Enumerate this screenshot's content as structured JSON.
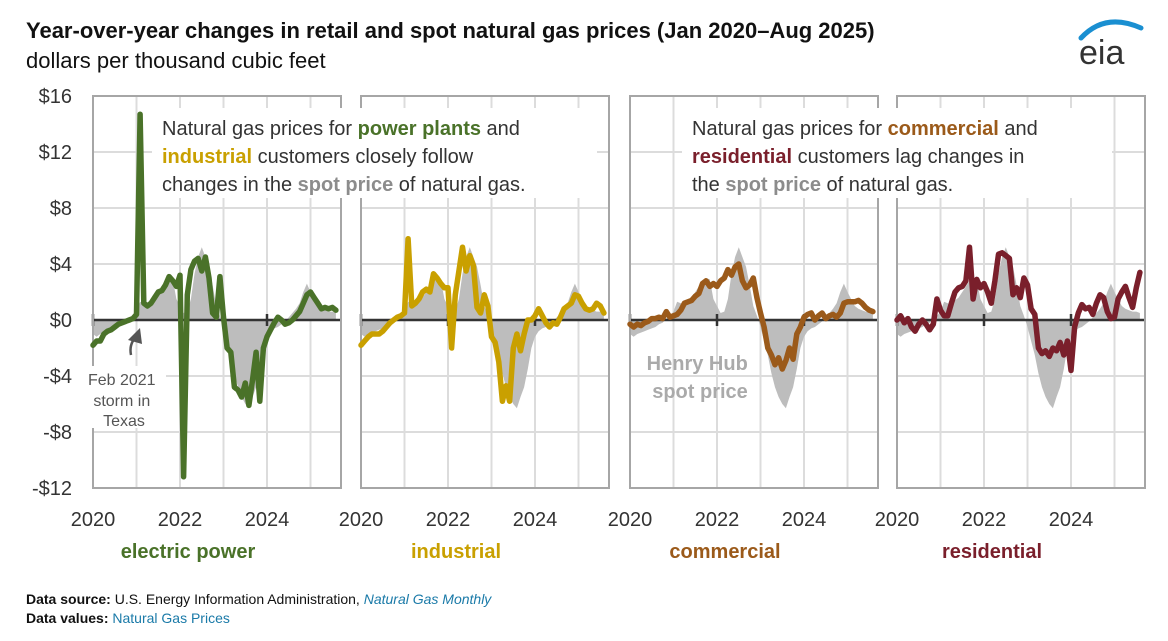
{
  "header": {
    "title": "Year-over-year changes in retail and spot natural gas prices (Jan 2020–Aug 2025)",
    "subtitle": "dollars per thousand cubic feet",
    "logo_text": "eia"
  },
  "annotations": {
    "left_box": {
      "line1_prefix": "Natural gas prices for ",
      "line1_highlight": "power plants",
      "line1_suffix": " and",
      "line2_highlight": "industrial",
      "line2_suffix": " customers closely follow",
      "line3_prefix": "changes in the ",
      "line3_highlight": "spot price",
      "line3_suffix": " of natural gas."
    },
    "right_box": {
      "line1_prefix": "Natural gas prices for ",
      "line1_highlight": "commercial",
      "line1_suffix": " and",
      "line2_highlight": "residential",
      "line2_suffix": " customers lag changes in",
      "line3_prefix": "the ",
      "line3_highlight": "spot price",
      "line3_suffix": " of natural gas."
    },
    "storm_note": [
      "Feb 2021",
      "storm in",
      "Texas"
    ],
    "spot_label": [
      "Henry Hub",
      "spot price"
    ]
  },
  "footer": {
    "source_label": "Data source:",
    "source_text": "U.S. Energy Information Administration, ",
    "source_link": "Natural Gas Monthly",
    "values_label": "Data values:",
    "values_link": "Natural Gas Prices"
  },
  "colors": {
    "electric_power": "#4a7229",
    "industrial": "#c9a000",
    "commercial": "#9b5a1a",
    "residential": "#7a1f2b",
    "spot_area": "#bdbdbd",
    "spot_text": "#8c8c8c",
    "link": "#1a7aa8",
    "logo_arc": "#1a8fd1",
    "logo_text": "#333333"
  },
  "chart_data": {
    "type": "line",
    "title": "Year-over-year changes in retail and spot natural gas prices (Jan 2020–Aug 2025)",
    "ylabel": "dollars per thousand cubic feet",
    "ylim": [
      -12,
      16
    ],
    "yticks": [
      -12,
      -8,
      -4,
      0,
      4,
      8,
      12,
      16
    ],
    "ytick_labels": [
      "-$12",
      "-$8",
      "-$4",
      "$0",
      "$4",
      "$8",
      "$12",
      "$16"
    ],
    "xlim": [
      "2020-01",
      "2025-08"
    ],
    "xticks": [
      "2020",
      "2022",
      "2024"
    ],
    "grid": true,
    "x_start": "2020-01",
    "frequency": "monthly",
    "spot_price_yoy": [
      -1.0,
      -1.2,
      -1.0,
      -0.9,
      -0.8,
      -0.7,
      -0.6,
      -0.5,
      -0.3,
      -0.2,
      0.1,
      0.3,
      0.6,
      1.3,
      1.2,
      1.0,
      1.4,
      1.6,
      2.0,
      2.4,
      2.8,
      3.0,
      2.9,
      1.5,
      1.0,
      0.5,
      0.6,
      1.5,
      3.3,
      4.5,
      5.2,
      4.5,
      3.8,
      2.5,
      1.0,
      0.3,
      -0.5,
      -1.5,
      -2.5,
      -3.8,
      -4.8,
      -5.5,
      -6.0,
      -6.3,
      -5.5,
      -4.8,
      -3.5,
      -2.0,
      -1.2,
      -0.8,
      -0.6,
      -0.5,
      -0.3,
      -0.1,
      0.2,
      0.5,
      0.8,
      1.2,
      2.0,
      2.6,
      2.0,
      1.5,
      1.0,
      0.8,
      0.7,
      0.6,
      0.6,
      0.5
    ],
    "panels": [
      {
        "name": "electric power",
        "color": "#4a7229",
        "values": [
          -1.8,
          -1.5,
          -1.5,
          -1.0,
          -0.8,
          -0.7,
          -0.5,
          -0.3,
          -0.2,
          -0.1,
          0.0,
          0.1,
          0.4,
          14.7,
          1.2,
          1.0,
          1.2,
          1.6,
          2.0,
          2.1,
          2.5,
          3.1,
          2.8,
          2.4,
          3.2,
          -11.2,
          1.8,
          3.6,
          4.2,
          4.4,
          3.5,
          4.5,
          3.0,
          0.5,
          0.2,
          3.1,
          0.2,
          -2.0,
          -2.3,
          -4.8,
          -5.0,
          -5.5,
          -4.5,
          -6.1,
          -4.3,
          -2.3,
          -5.8,
          -2.0,
          -1.2,
          -0.7,
          -0.2,
          0.2,
          0.0,
          -0.3,
          -0.2,
          0.0,
          0.3,
          0.6,
          1.2,
          1.8,
          2.0,
          1.6,
          1.2,
          0.8,
          0.9,
          0.8,
          0.9,
          0.7
        ]
      },
      {
        "name": "industrial",
        "color": "#c9a000",
        "values": [
          -1.8,
          -1.5,
          -1.2,
          -1.0,
          -1.0,
          -1.0,
          -0.8,
          -0.5,
          -0.2,
          0.0,
          0.2,
          0.3,
          0.5,
          5.8,
          1.0,
          1.2,
          1.5,
          2.0,
          2.2,
          2.0,
          3.3,
          3.0,
          2.6,
          2.3,
          2.3,
          -2.0,
          1.8,
          3.5,
          5.2,
          3.5,
          4.6,
          3.9,
          0.9,
          0.5,
          1.8,
          1.0,
          -1.2,
          -1.6,
          -3.0,
          -5.8,
          -4.7,
          -5.8,
          -2.0,
          -1.0,
          -2.2,
          -1.0,
          0.0,
          0.0,
          0.3,
          0.8,
          0.3,
          -0.2,
          -0.5,
          -0.2,
          -0.3,
          0.2,
          0.8,
          1.0,
          1.2,
          1.8,
          1.7,
          1.2,
          0.8,
          0.7,
          0.8,
          1.2,
          1.0,
          0.5
        ]
      },
      {
        "name": "commercial",
        "color": "#9b5a1a",
        "values": [
          -0.3,
          -0.5,
          -0.3,
          -0.4,
          -0.2,
          -0.1,
          0.1,
          0.1,
          0.2,
          0.1,
          0.6,
          0.2,
          0.3,
          0.4,
          0.7,
          1.2,
          1.3,
          1.4,
          1.7,
          1.9,
          2.6,
          2.8,
          2.4,
          2.6,
          2.4,
          2.8,
          3.0,
          3.6,
          3.2,
          3.8,
          4.0,
          2.8,
          2.3,
          2.5,
          3.0,
          1.6,
          0.5,
          -0.5,
          -2.0,
          -2.5,
          -3.2,
          -2.7,
          -3.5,
          -2.9,
          -2.0,
          -2.8,
          -1.0,
          -0.5,
          0.2,
          0.4,
          0.5,
          0.0,
          0.3,
          0.5,
          0.1,
          0.3,
          0.4,
          0.2,
          0.5,
          1.2,
          1.3,
          1.3,
          1.3,
          1.4,
          1.2,
          0.9,
          0.7,
          0.6
        ]
      },
      {
        "name": "residential",
        "color": "#7a1f2b",
        "values": [
          0.0,
          0.3,
          -0.2,
          0.1,
          -0.5,
          -0.8,
          -0.3,
          0.0,
          -0.3,
          -0.7,
          -0.3,
          1.5,
          0.7,
          0.3,
          0.3,
          1.2,
          2.0,
          2.3,
          2.4,
          2.8,
          5.2,
          1.5,
          2.9,
          2.3,
          2.6,
          2.0,
          1.2,
          2.8,
          4.7,
          4.8,
          4.6,
          4.4,
          1.8,
          2.3,
          1.6,
          3.0,
          2.5,
          0.8,
          0.4,
          -2.0,
          -2.4,
          -2.2,
          -2.6,
          -2.0,
          -2.2,
          -1.6,
          -2.5,
          -1.5,
          -3.6,
          -0.5,
          0.5,
          1.1,
          0.8,
          0.9,
          0.4,
          1.2,
          1.8,
          1.6,
          0.6,
          0.1,
          0.2,
          1.5,
          2.0,
          2.4,
          1.6,
          0.9,
          2.3,
          3.4
        ]
      }
    ]
  }
}
